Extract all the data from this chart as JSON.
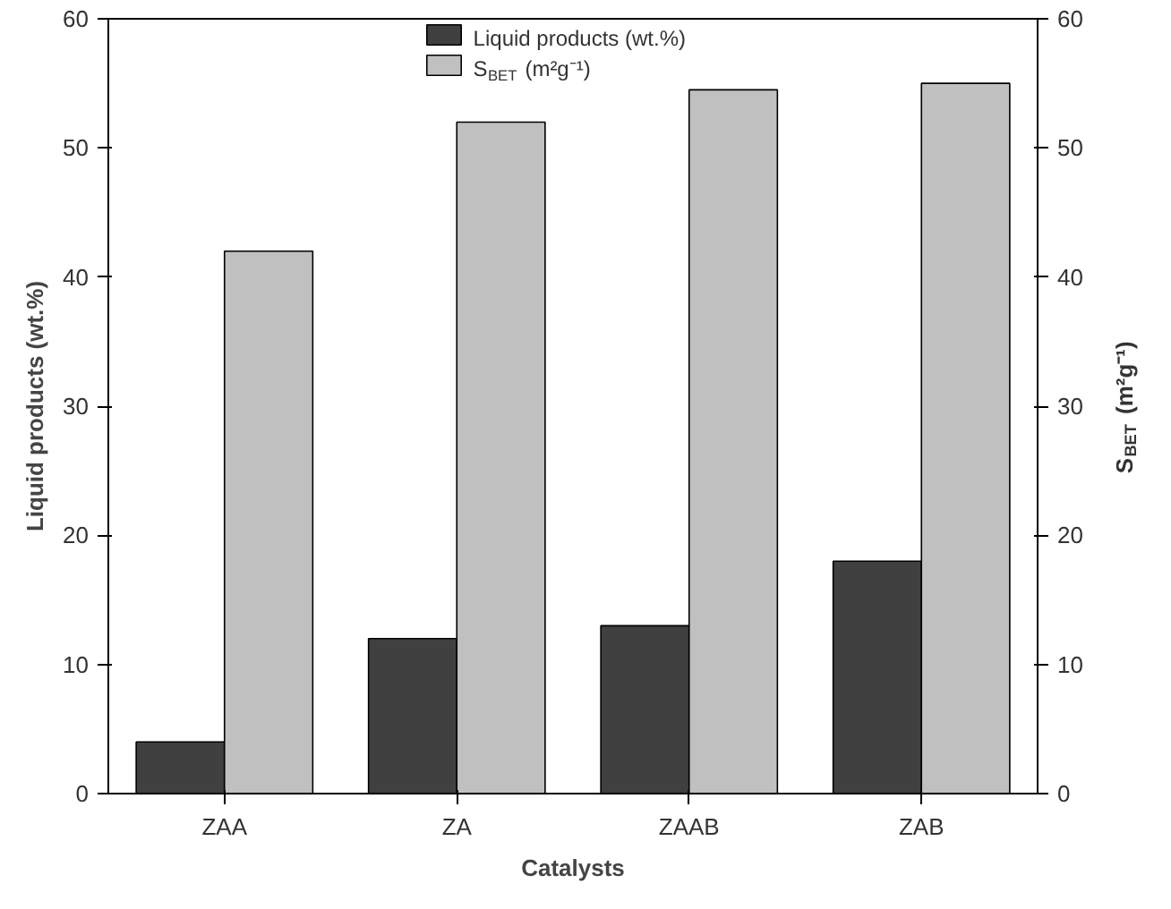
{
  "chart_data": {
    "type": "bar",
    "xlabel": "Catalysts",
    "ylabel": "Liquid products (wt.%)",
    "y2label": "S$_{BET}$ (m²g⁻¹)",
    "categories": [
      "ZAA",
      "ZA",
      "ZAAB",
      "ZAB"
    ],
    "series": [
      {
        "name": "Liquid products (wt.%)",
        "color": "#404040",
        "values": [
          4,
          12,
          13,
          18
        ]
      },
      {
        "name": "S$_{BET}$ (m²g⁻¹)",
        "color": "#c0c0c0",
        "values": [
          42,
          52,
          54.5,
          55
        ],
        "axis": "y2"
      }
    ],
    "ylim": [
      0,
      60
    ],
    "yticks": [
      0,
      10,
      20,
      30,
      40,
      50,
      60
    ],
    "y2lim": [
      0,
      60
    ],
    "y2ticks": [
      0,
      10,
      20,
      30,
      40,
      50,
      60
    ],
    "grid": false,
    "legend": "top"
  }
}
